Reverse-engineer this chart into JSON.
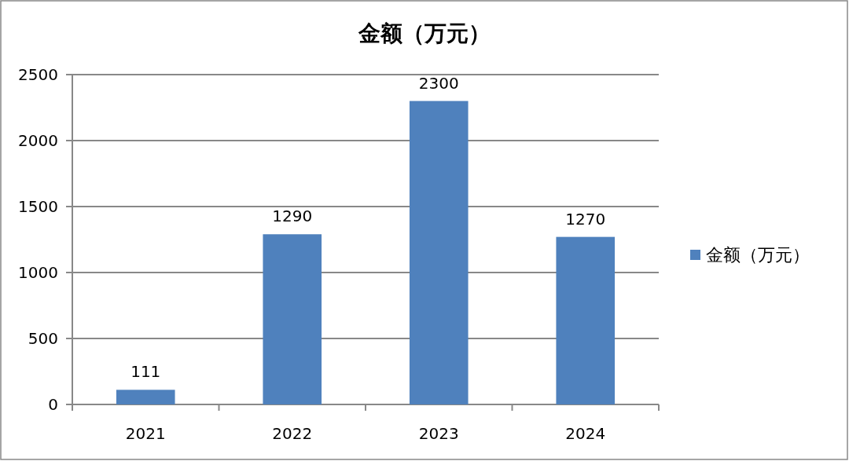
{
  "chart_data": {
    "type": "bar",
    "title": "金额（万元）",
    "categories": [
      "2021",
      "2022",
      "2023",
      "2024"
    ],
    "series": [
      {
        "name": "金额（万元）",
        "color": "#4f81bd",
        "values": [
          111,
          1290,
          2300,
          1270
        ]
      }
    ],
    "ylim": [
      0,
      2500
    ],
    "yticks": [
      0,
      500,
      1000,
      1500,
      2000,
      2500
    ],
    "grid": "y",
    "legend": "right",
    "data_labels": true
  }
}
